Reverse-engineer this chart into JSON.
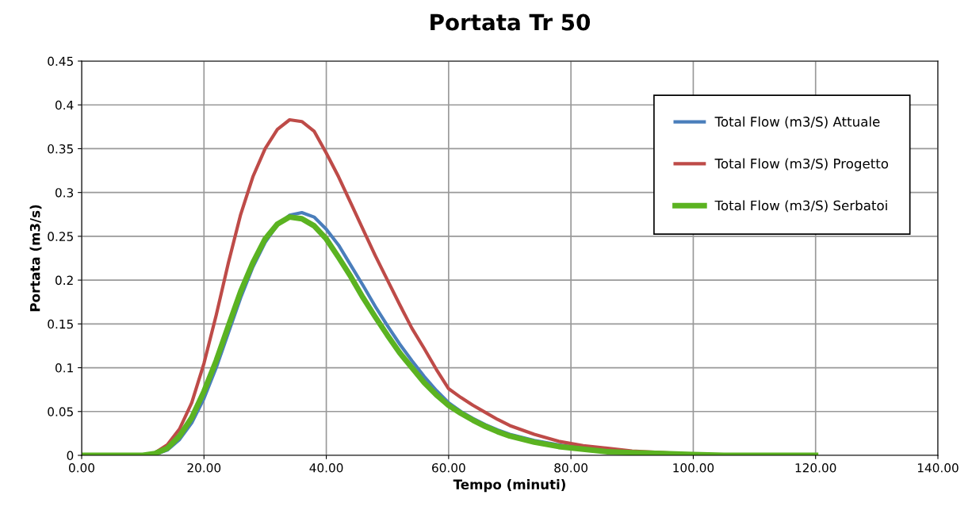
{
  "chart_data": {
    "type": "line",
    "title": "Portata Tr 50",
    "xlabel": "Tempo (minuti)",
    "ylabel": "Portata (m3/s)",
    "x": [
      0,
      5,
      10,
      12,
      14,
      16,
      18,
      20,
      22,
      24,
      26,
      28,
      30,
      32,
      34,
      36,
      38,
      40,
      42,
      44,
      46,
      48,
      50,
      52,
      54,
      56,
      58,
      60,
      62,
      64,
      66,
      68,
      70,
      74,
      78,
      82,
      86,
      90,
      95,
      100,
      105,
      110,
      120
    ],
    "series": [
      {
        "name": "Total Flow (m3/S) Attuale",
        "color": "#4a7ebb",
        "values": [
          null,
          null,
          null,
          0.001,
          0.006,
          0.018,
          0.037,
          0.065,
          0.1,
          0.14,
          0.18,
          0.215,
          0.243,
          0.263,
          0.274,
          0.277,
          0.272,
          0.258,
          0.24,
          0.217,
          0.194,
          0.17,
          0.148,
          0.127,
          0.108,
          0.09,
          0.074,
          0.06,
          0.05,
          0.042,
          0.035,
          0.029,
          0.024,
          0.017,
          0.012,
          0.008,
          0.005,
          null,
          null,
          null,
          null,
          null,
          null
        ]
      },
      {
        "name": "Total Flow (m3/S) Progetto",
        "color": "#be4b48",
        "values": [
          null,
          null,
          0,
          0.003,
          0.012,
          0.03,
          0.06,
          0.105,
          0.16,
          0.22,
          0.275,
          0.318,
          0.35,
          0.372,
          0.383,
          0.381,
          0.37,
          0.345,
          0.318,
          0.288,
          0.258,
          0.228,
          0.2,
          0.172,
          0.145,
          0.122,
          0.098,
          0.076,
          0.066,
          0.057,
          0.049,
          0.041,
          0.034,
          0.024,
          0.016,
          0.011,
          0.008,
          0.005,
          0.003,
          0.001,
          null,
          null,
          null
        ]
      },
      {
        "name": "Total Flow (m3/S) Serbatoi",
        "color": "#5bb321",
        "values": [
          0,
          0,
          0,
          0.002,
          0.008,
          0.022,
          0.043,
          0.073,
          0.108,
          0.148,
          0.187,
          0.22,
          0.247,
          0.264,
          0.272,
          0.27,
          0.262,
          0.247,
          0.226,
          0.204,
          0.18,
          0.158,
          0.137,
          0.117,
          0.1,
          0.083,
          0.069,
          0.057,
          0.048,
          0.04,
          0.033,
          0.027,
          0.022,
          0.015,
          0.01,
          0.007,
          0.004,
          0.003,
          0.002,
          0.001,
          0,
          0,
          0
        ]
      }
    ],
    "xlim": [
      0,
      140
    ],
    "xticks": [
      {
        "value": 0,
        "label": "0.00"
      },
      {
        "value": 20,
        "label": "20.00"
      },
      {
        "value": 40,
        "label": "40.00"
      },
      {
        "value": 60,
        "label": "60.00"
      },
      {
        "value": 80,
        "label": "80.00"
      },
      {
        "value": 100,
        "label": "100.00"
      },
      {
        "value": 120,
        "label": "120.00"
      },
      {
        "value": 140,
        "label": "140.00"
      }
    ],
    "ylim": [
      0,
      0.45
    ],
    "yticks": [
      0,
      0.05,
      0.1,
      0.15,
      0.2,
      0.25,
      0.3,
      0.35,
      0.4,
      0.45
    ],
    "grid": true,
    "legend": "top right",
    "marker": "none",
    "line_style": "solid"
  }
}
